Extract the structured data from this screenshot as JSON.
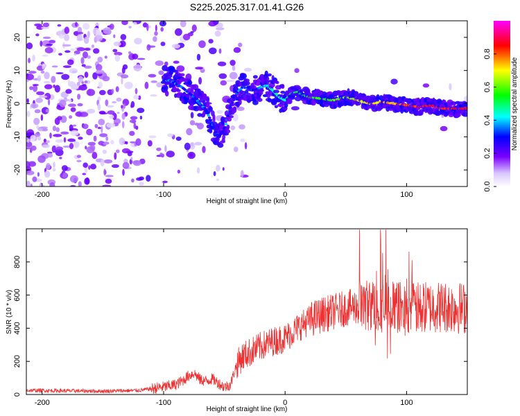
{
  "title": "S225.2025.317.01.41.G26",
  "chart_data": [
    {
      "type": "heatmap",
      "title": "S225.2025.317.01.41.G26",
      "xlabel": "Height of straight line (km)",
      "ylabel": "Frequency (Hz)",
      "xlim": [
        -213,
        150
      ],
      "ylim": [
        -25,
        25
      ],
      "xticks": [
        -200,
        -100,
        0,
        100
      ],
      "yticks": [
        -20,
        -10,
        0,
        10,
        20
      ],
      "colorbar": {
        "label": "Normalized spectral amplitude",
        "range": [
          0,
          1
        ],
        "ticks": [
          0.0,
          0.2,
          0.4,
          0.6,
          0.8
        ],
        "tick_labels": [
          "0.0",
          "0.2",
          "0.4",
          "0.6",
          "0.8"
        ],
        "colors": [
          "#ffffff",
          "#c9b3ff",
          "#7a00ff",
          "#0000ff",
          "#00ffff",
          "#00ff00",
          "#ffff00",
          "#ff0000",
          "#ff00ff"
        ]
      },
      "ridge": {
        "x": [
          -95,
          -85,
          -75,
          -65,
          -55,
          -50,
          -45,
          -40,
          -35,
          -30,
          -25,
          -20,
          -15,
          -10,
          -5,
          0,
          5,
          10,
          15,
          20,
          30,
          40,
          50,
          60,
          70,
          80,
          90,
          100,
          110,
          120,
          130,
          140,
          150
        ],
        "y": [
          7,
          5,
          2,
          -2,
          -10,
          -8,
          -1,
          3,
          5,
          4.5,
          4,
          5,
          5.5,
          4,
          2,
          1,
          3,
          3.5,
          2.5,
          2,
          1.5,
          1,
          2,
          1,
          0,
          0.5,
          0,
          -0.5,
          -1,
          -0.5,
          -1.5,
          -1.5,
          -1.5
        ]
      }
    },
    {
      "type": "line",
      "xlabel": "Height of straight line (km)",
      "ylabel": "SNR (10 * v/v)",
      "xlim": [
        -213,
        150
      ],
      "ylim": [
        0,
        1000
      ],
      "xticks": [
        -200,
        -100,
        0,
        100
      ],
      "yticks": [
        0,
        200,
        400,
        600,
        800
      ],
      "color": "#ee3030",
      "envelope": {
        "x": [
          -213,
          -150,
          -120,
          -100,
          -90,
          -85,
          -80,
          -75,
          -70,
          -65,
          -60,
          -55,
          -50,
          -45,
          -40,
          -35,
          -30,
          -20,
          -10,
          0,
          10,
          20,
          30,
          40,
          50,
          60,
          70,
          80,
          90,
          100,
          110,
          120,
          130,
          140,
          150
        ],
        "y": [
          25,
          20,
          25,
          45,
          60,
          80,
          110,
          130,
          90,
          80,
          95,
          70,
          45,
          60,
          180,
          230,
          250,
          290,
          320,
          340,
          400,
          450,
          480,
          500,
          520,
          535,
          540,
          530,
          530,
          520,
          520,
          530,
          530,
          525,
          520
        ]
      }
    }
  ]
}
